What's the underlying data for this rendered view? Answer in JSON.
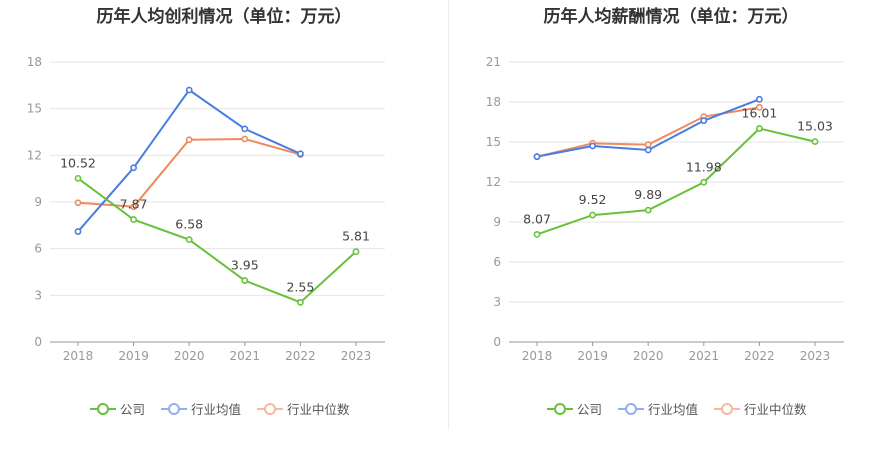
{
  "charts": [
    {
      "title": "历年人均创利情况（单位：万元）",
      "legend": [
        "公司",
        "行业均值",
        "行业中位数"
      ],
      "chart_data": {
        "type": "line",
        "categories": [
          "2018",
          "2019",
          "2020",
          "2021",
          "2022",
          "2023"
        ],
        "ylim": [
          0,
          18
        ],
        "yticks": [
          0,
          3,
          6,
          9,
          12,
          15,
          18
        ],
        "grid": true,
        "legend_position": "bottom",
        "series": [
          {
            "name": "公司",
            "color": "#67c23a",
            "values": [
              10.52,
              7.87,
              6.58,
              3.95,
              2.55,
              5.81
            ],
            "labels": [
              "10.52",
              "7.87",
              "6.58",
              "3.95",
              "2.55",
              "5.81"
            ]
          },
          {
            "name": "行业均值",
            "color": "#4a7de0",
            "values": [
              7.1,
              11.2,
              16.2,
              13.7,
              12.1,
              null
            ]
          },
          {
            "name": "行业中位数",
            "color": "#f08a5d",
            "values": [
              8.95,
              8.7,
              13.0,
              13.05,
              12.05,
              null
            ]
          }
        ]
      }
    },
    {
      "title": "历年人均薪酬情况（单位：万元）",
      "legend": [
        "公司",
        "行业均值",
        "行业中位数"
      ],
      "chart_data": {
        "type": "line",
        "categories": [
          "2018",
          "2019",
          "2020",
          "2021",
          "2022",
          "2023"
        ],
        "ylim": [
          0,
          21
        ],
        "yticks": [
          0,
          3,
          6,
          9,
          12,
          15,
          18,
          21
        ],
        "grid": true,
        "legend_position": "bottom",
        "series": [
          {
            "name": "公司",
            "color": "#67c23a",
            "values": [
              8.07,
              9.52,
              9.89,
              11.98,
              16.01,
              15.03
            ],
            "labels": [
              "8.07",
              "9.52",
              "9.89",
              "11.98",
              "16.01",
              "15.03"
            ]
          },
          {
            "name": "行业均值",
            "color": "#4a7de0",
            "values": [
              13.9,
              14.7,
              14.4,
              16.6,
              18.2,
              null
            ]
          },
          {
            "name": "行业中位数",
            "color": "#f08a5d",
            "values": [
              13.9,
              14.9,
              14.8,
              16.9,
              17.6,
              null
            ]
          }
        ]
      }
    }
  ]
}
